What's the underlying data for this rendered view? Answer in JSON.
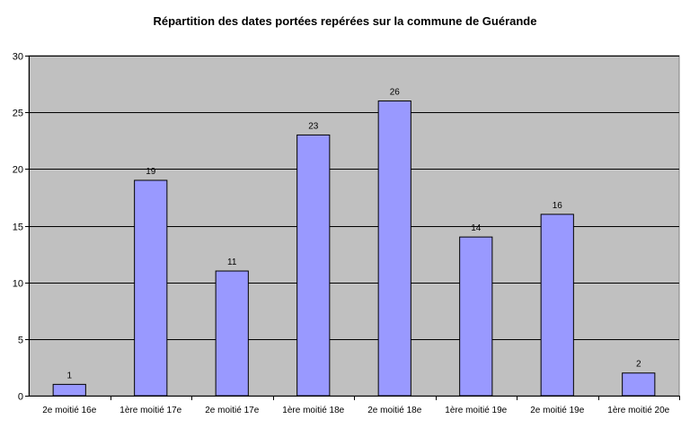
{
  "chart_data": {
    "type": "bar",
    "title": "Répartition des dates portées repérées sur la commune de Guérande",
    "xlabel": "",
    "ylabel": "",
    "categories": [
      "2e moitié 16e",
      "1ère moitié 17e",
      "2e moitié 17e",
      "1ère moitié 18e",
      "2e moitié 18e",
      "1ère moitié 19e",
      "2e moitié 19e",
      "1ère moitié 20e"
    ],
    "values": [
      1,
      19,
      11,
      23,
      26,
      14,
      16,
      2
    ],
    "ylim": [
      0,
      30
    ],
    "yticks": [
      0,
      5,
      10,
      15,
      20,
      25,
      30
    ],
    "grid": true,
    "legend": "none",
    "data_labels": true,
    "colors": {
      "bar_fill": "#9999ff",
      "bar_stroke": "#000000",
      "plot_background": "#c0c0c0",
      "gridline": "#000000"
    }
  }
}
